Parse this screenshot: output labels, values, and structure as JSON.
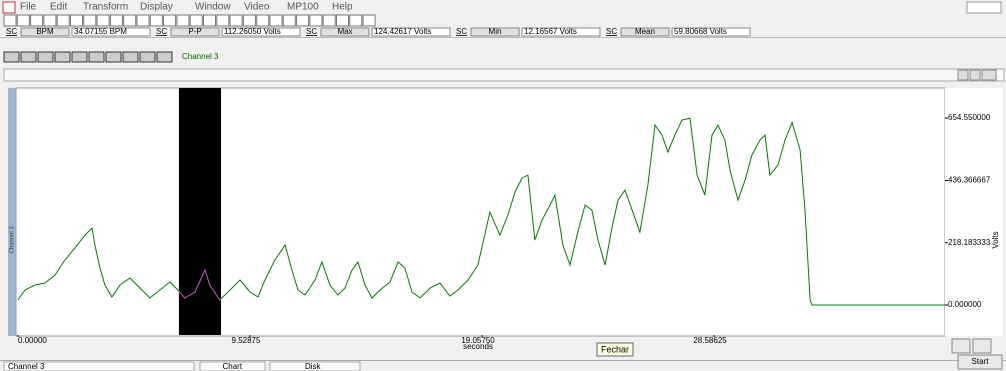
{
  "window": {
    "menu": [
      "File",
      "Edit",
      "Transform",
      "Display",
      "Window",
      "Video",
      "MP100",
      "Help"
    ]
  },
  "measurements": [
    {
      "channel": "SC",
      "name": "BPM",
      "value": "34.07155 BPM"
    },
    {
      "channel": "SC",
      "name": "P-P",
      "value": "112.26050 Volts"
    },
    {
      "channel": "SC",
      "name": "Max",
      "value": "124.42617 Volts"
    },
    {
      "channel": "SC",
      "name": "Min",
      "value": "12.16567 Volts"
    },
    {
      "channel": "SC",
      "name": "Mean",
      "value": "59.80668 Volts"
    }
  ],
  "channel_title": "Channel 3",
  "chart_data": {
    "type": "line",
    "channel_label": "Channel 3",
    "xlabel": "seconds",
    "ylabel": "Volts",
    "color": "#008000",
    "selection": [
      6.61,
      8.34
    ],
    "selection_color": "#cc44cc",
    "x": [
      0,
      0.29,
      0.7,
      1.11,
      1.52,
      1.93,
      2.34,
      2.75,
      3.04,
      3.16,
      3.37,
      3.57,
      3.86,
      4.19,
      4.6,
      5.01,
      5.42,
      5.83,
      6.24,
      6.57,
      6.85,
      7.27,
      7.68,
      7.88,
      8.29,
      8.71,
      9.12,
      9.53,
      9.86,
      10.14,
      10.55,
      10.97,
      11.25,
      11.5,
      11.79,
      12.2,
      12.48,
      12.81,
      13.14,
      13.43,
      13.72,
      13.96,
      14.25,
      14.54,
      14.87,
      15.28,
      15.61,
      15.89,
      16.18,
      16.51,
      16.92,
      17.33,
      17.74,
      18.07,
      18.48,
      18.89,
      19.38,
      19.79,
      20.12,
      20.41,
      20.7,
      20.94,
      21.23,
      21.52,
      21.85,
      22.05,
      22.38,
      22.67,
      22.99,
      23.29,
      23.57,
      23.82,
      24.11,
      24.39,
      24.64,
      24.93,
      25.22,
      25.54,
      25.87,
      26.16,
      26.45,
      26.69,
      26.98,
      27.27,
      27.6,
      27.89,
      28.21,
      28.5,
      28.75,
      29.03,
      29.24,
      29.57,
      29.86,
      30.14,
      30.47,
      30.68,
      30.88,
      31.21,
      31.5,
      31.79,
      32.12,
      32.32,
      32.53,
      32.61,
      38.07
    ],
    "values": [
      17.5,
      52.5,
      70,
      77,
      105,
      157.5,
      199.5,
      245,
      269.5,
      210,
      129.5,
      70,
      28,
      70,
      94.5,
      59.5,
      24.5,
      52.5,
      80.5,
      52.5,
      24.5,
      45.5,
      122.5,
      70,
      17.5,
      52.5,
      87.5,
      45.5,
      28,
      87.5,
      157.5,
      210,
      122.5,
      52.5,
      35,
      87.5,
      150.5,
      70,
      35,
      59.5,
      122.5,
      150.5,
      70,
      24.5,
      52.5,
      80.5,
      150.5,
      129.5,
      45.5,
      24.5,
      59.5,
      77,
      31.5,
      52.5,
      87.5,
      140,
      325.5,
      245,
      315,
      395.5,
      444.5,
      455,
      227.5,
      297.5,
      350,
      385,
      210,
      140,
      255.5,
      350,
      332.5,
      227.5,
      140,
      269.5,
      367.5,
      402.5,
      332.5,
      255.5,
      420,
      630,
      595,
      535.5,
      595,
      647.5,
      654.5,
      455,
      385,
      595,
      630,
      577.5,
      472.5,
      367.5,
      437.5,
      525,
      577.5,
      595,
      455,
      490,
      577.5,
      640,
      542.5,
      332.5,
      17.5,
      0,
      0
    ],
    "xlim": [
      -0.08,
      38.07
    ],
    "xticks": [
      {
        "value": 0,
        "label": "0.00000"
      },
      9.52875,
      {
        "value": 19.0575,
        "label": "19.05750"
      },
      28.58625
    ],
    "ylim": [
      -105,
      760
    ],
    "yticks": [
      {
        "value": 0,
        "label": "0.000000"
      },
      218.183333,
      436.366667,
      {
        "value": 654.55,
        "label": "654.550000"
      }
    ]
  },
  "tooltip": "Fechar",
  "status_tabs": [
    "Channel 3",
    "Chart",
    "Disk"
  ],
  "start_button": "Start"
}
